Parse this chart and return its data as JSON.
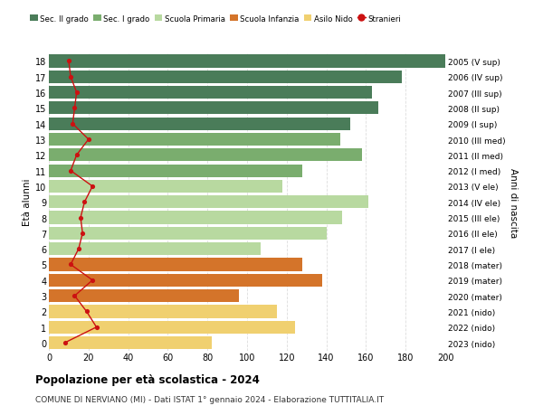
{
  "ages": [
    18,
    17,
    16,
    15,
    14,
    13,
    12,
    11,
    10,
    9,
    8,
    7,
    6,
    5,
    4,
    3,
    2,
    1,
    0
  ],
  "right_labels": [
    "2005 (V sup)",
    "2006 (IV sup)",
    "2007 (III sup)",
    "2008 (II sup)",
    "2009 (I sup)",
    "2010 (III med)",
    "2011 (II med)",
    "2012 (I med)",
    "2013 (V ele)",
    "2014 (IV ele)",
    "2015 (III ele)",
    "2016 (II ele)",
    "2017 (I ele)",
    "2018 (mater)",
    "2019 (mater)",
    "2020 (mater)",
    "2021 (nido)",
    "2022 (nido)",
    "2023 (nido)"
  ],
  "bar_values": [
    205,
    178,
    163,
    166,
    152,
    147,
    158,
    128,
    118,
    161,
    148,
    140,
    107,
    128,
    138,
    96,
    115,
    124,
    82
  ],
  "bar_colors": [
    "#4a7c59",
    "#4a7c59",
    "#4a7c59",
    "#4a7c59",
    "#4a7c59",
    "#7aad6e",
    "#7aad6e",
    "#7aad6e",
    "#b8d9a0",
    "#b8d9a0",
    "#b8d9a0",
    "#b8d9a0",
    "#b8d9a0",
    "#d4742a",
    "#d4742a",
    "#d4742a",
    "#f0d070",
    "#f0d070",
    "#f0d070"
  ],
  "stranieri_values": [
    10,
    11,
    14,
    13,
    12,
    20,
    14,
    11,
    22,
    18,
    16,
    17,
    15,
    11,
    22,
    13,
    19,
    24,
    8
  ],
  "stranieri_color": "#cc1111",
  "xlim": [
    0,
    200
  ],
  "ylabel": "Età alunni",
  "right_ylabel": "Anni di nascita",
  "title": "Popolazione per età scolastica - 2024",
  "subtitle": "COMUNE DI NERVIANO (MI) - Dati ISTAT 1° gennaio 2024 - Elaborazione TUTTITALIA.IT",
  "legend_labels": [
    "Sec. II grado",
    "Sec. I grado",
    "Scuola Primaria",
    "Scuola Infanzia",
    "Asilo Nido",
    "Stranieri"
  ],
  "legend_colors": [
    "#4a7c59",
    "#7aad6e",
    "#b8d9a0",
    "#d4742a",
    "#f0d070",
    "#cc1111"
  ],
  "bg_color": "#ffffff",
  "grid_color": "#dddddd"
}
